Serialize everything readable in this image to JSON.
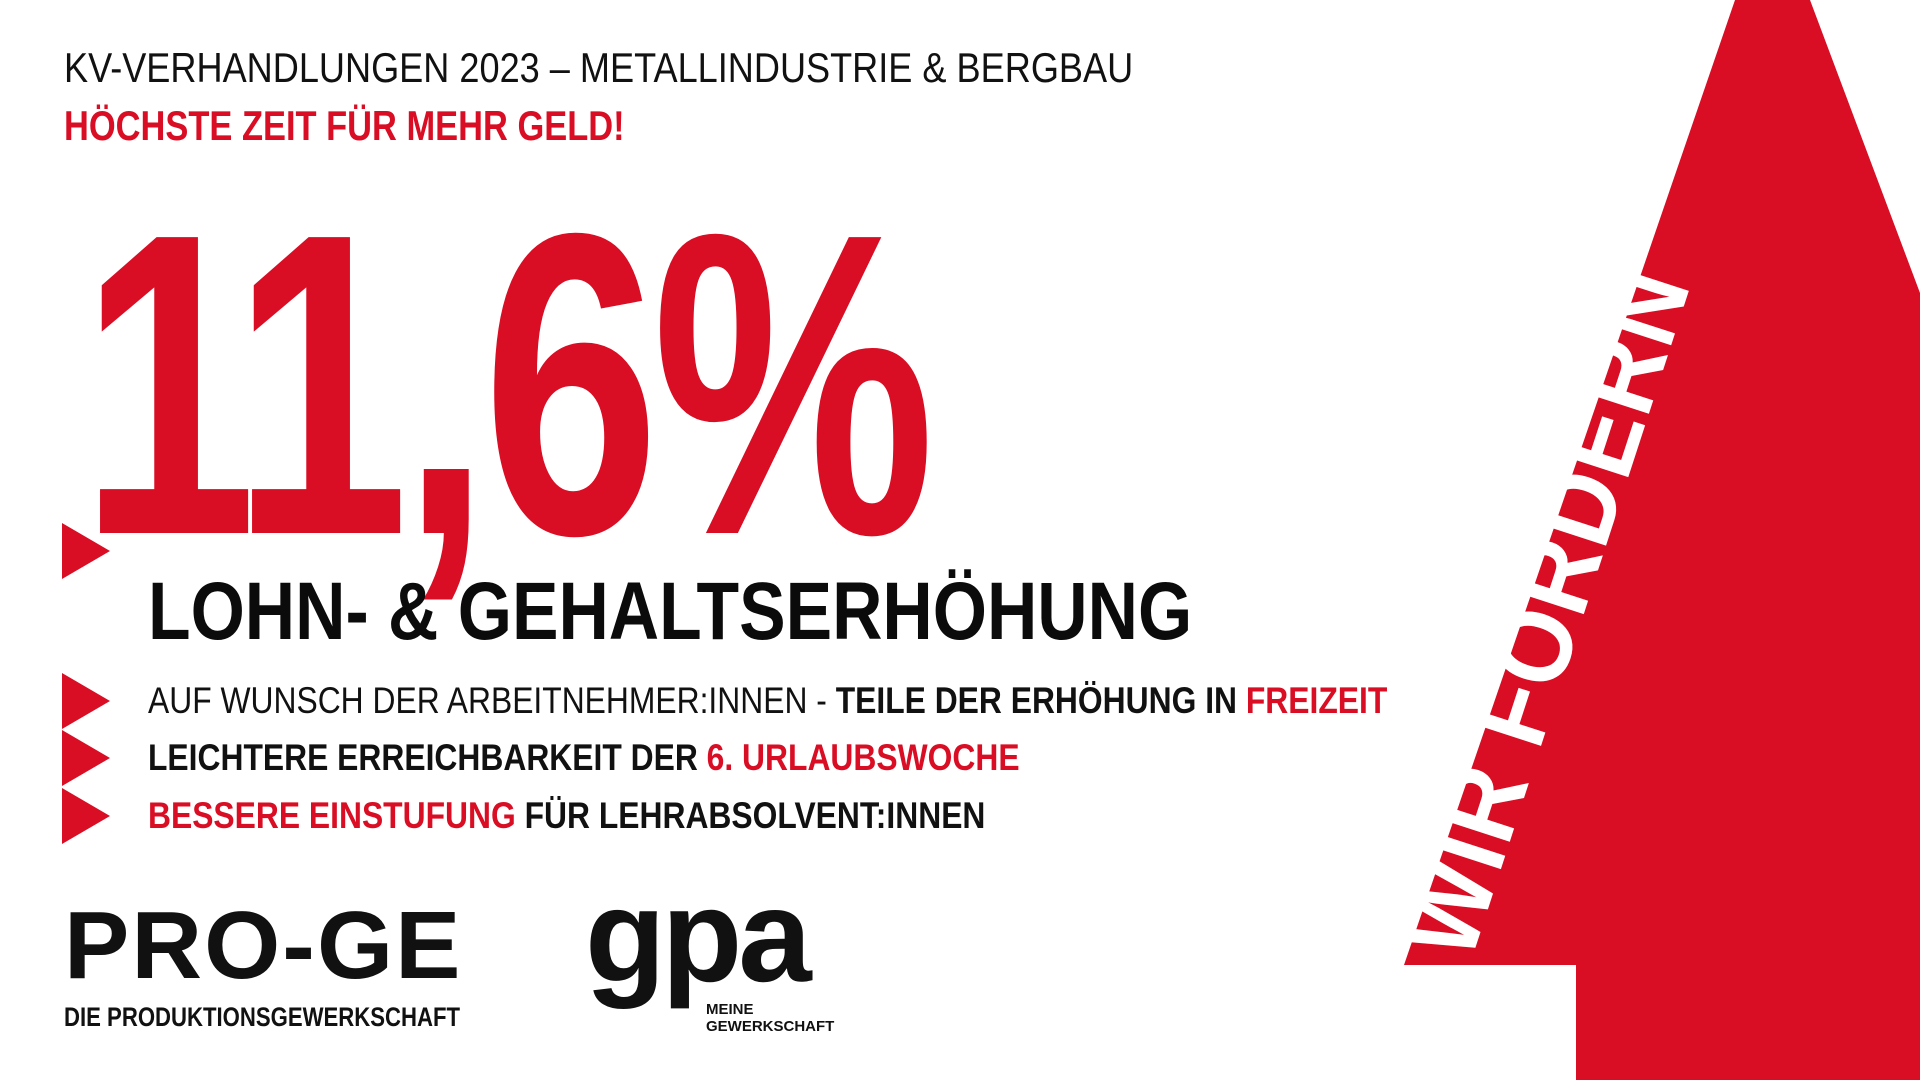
{
  "colors": {
    "accent": "#d90d23",
    "text": "#111111",
    "background": "#ffffff"
  },
  "header": {
    "kicker": "KV-VERHANDLUNGEN 2023 – METALLINDUSTRIE & BERGBAU",
    "claim": "HÖCHSTE ZEIT FÜR MEHR GELD!"
  },
  "main": {
    "percentage": "11,6%",
    "subtitle": "LOHN- & GEHALTSERHÖHUNG",
    "bullets": [
      {
        "part1": "AUF WUNSCH DER ARBEITNEHMER:INNEN - ",
        "part2": "TEILE DER ERHÖHUNG IN ",
        "part3": "FREIZEIT"
      },
      {
        "part1": "LEICHTERE ERREICHBARKEIT DER ",
        "part2": "6. URLAUBSWOCHE"
      },
      {
        "part1": "BESSERE EINSTUFUNG",
        "part2": " FÜR LEHRABSOLVENT:INNEN"
      }
    ]
  },
  "arrow": {
    "label": "WIR FORDERN"
  },
  "logos": {
    "proge": {
      "name": "PRO-GE",
      "tagline": "DIE PRODUKTIONSGEWERKSCHAFT"
    },
    "gpa": {
      "name": "gpa",
      "tagline": "MEINE\nGEWERKSCHAFT"
    }
  }
}
